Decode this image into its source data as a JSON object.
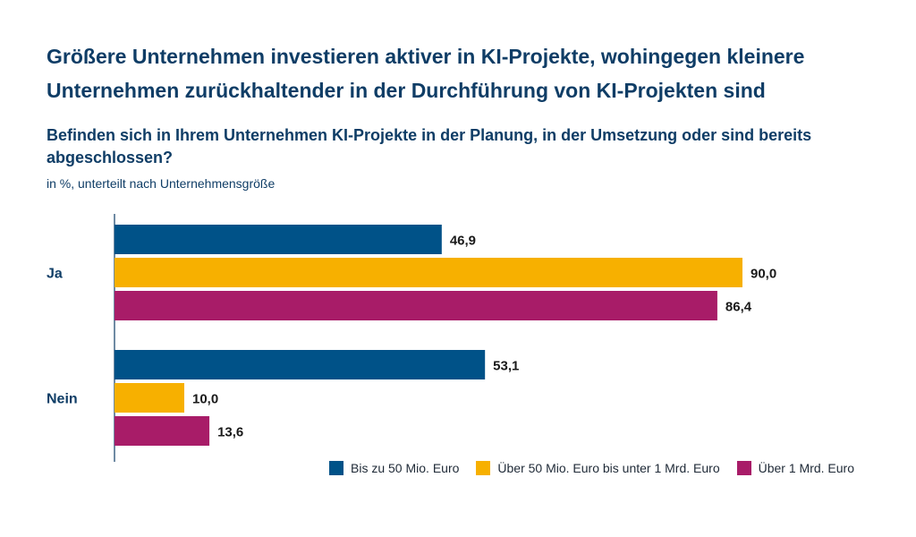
{
  "title": "Größere Unternehmen investieren aktiver in KI-Projekte, wohingegen kleinere Unternehmen zurückhaltender in der Durchführung von KI-Projekten sind",
  "subtitle": "Befinden sich in Ihrem Unternehmen KI-Projekte in der Planung, in der Umsetzung oder sind bereits abgeschlossen?",
  "note": "in %, unterteilt nach Unternehmensgröße",
  "chart_data": {
    "type": "bar",
    "orientation": "horizontal",
    "categories": [
      "Ja",
      "Nein"
    ],
    "series": [
      {
        "name": "Bis zu 50 Mio. Euro",
        "values": [
          46.9,
          53.1
        ],
        "labels": [
          "46,9",
          "53,1"
        ],
        "color": "#005288"
      },
      {
        "name": "Über 50 Mio. Euro bis unter 1 Mrd. Euro",
        "values": [
          90.0,
          10.0
        ],
        "labels": [
          "90,0",
          "10,0"
        ],
        "color": "#f7b000"
      },
      {
        "name": "Über 1 Mrd. Euro",
        "values": [
          86.4,
          13.6
        ],
        "labels": [
          "86,4",
          "13,6"
        ],
        "color": "#a81c68"
      }
    ],
    "xlim": [
      0,
      90
    ],
    "grid": false,
    "legend_position": "bottom-right"
  }
}
